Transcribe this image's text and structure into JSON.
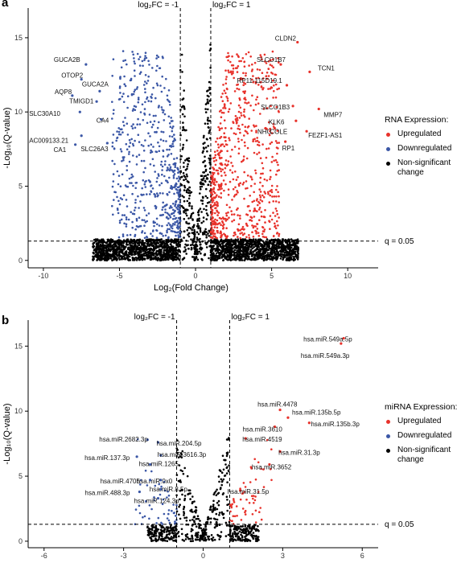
{
  "colors": {
    "up": "#e8322b",
    "down": "#3b57a6",
    "ns": "#000000"
  },
  "chart_data": [
    {
      "panel_label": "a",
      "type": "scatter",
      "xlabel": "Log₂(Fold Change)",
      "ylabel": "-Log₁₀(Q-value)",
      "xlim": [
        -11,
        12
      ],
      "ylim": [
        -0.5,
        17
      ],
      "x_ticks": [
        -10,
        -5,
        0,
        5,
        10
      ],
      "x_tick_labels": [
        "-10",
        "-5",
        "0",
        "5",
        "10"
      ],
      "y_ticks": [
        0,
        5,
        10,
        15
      ],
      "y_tick_labels": [
        "0",
        "5",
        "10",
        "15"
      ],
      "fc_lines": [
        {
          "x": -1,
          "label": "log₂FC = -1"
        },
        {
          "x": 1,
          "label": "log₂FC = 1"
        }
      ],
      "q_line": {
        "y": 1.3,
        "label": "q = 0.05"
      },
      "legend": {
        "title": "RNA Expression:",
        "items": [
          "Upregulated",
          "Downregulated",
          "Non-significant change"
        ]
      },
      "shape": {
        "xmax": 9,
        "ymax": 14,
        "ns_n": 2600,
        "sig_n": 1300,
        "x_ext": 4.5,
        "y_ext": 8,
        "y_floor": 1.5,
        "seed": 11
      },
      "labeled_points": [
        {
          "name": "GUCA2B",
          "x": -7.2,
          "y": 13.2
        },
        {
          "name": "OTOP2",
          "x": -7.5,
          "y": 12.2
        },
        {
          "name": "GUCA2A",
          "x": -6.3,
          "y": 11.4
        },
        {
          "name": "AQP8",
          "x": -8.1,
          "y": 11.1
        },
        {
          "name": "TMIGD1",
          "x": -6.5,
          "y": 10.7
        },
        {
          "name": "SLC30A10",
          "x": -7.6,
          "y": 10.0
        },
        {
          "name": "CA4",
          "x": -6.2,
          "y": 9.5
        },
        {
          "name": "AC009133.21",
          "x": -7.5,
          "y": 8.4
        },
        {
          "name": "CA1",
          "x": -7.9,
          "y": 7.8
        },
        {
          "name": "SLC26A3",
          "x": -5.8,
          "y": 7.9
        },
        {
          "name": "CLDN2",
          "x": 6.7,
          "y": 14.7
        },
        {
          "name": "SLCO1B7",
          "x": 5.6,
          "y": 13.2
        },
        {
          "name": "TCN1",
          "x": 7.5,
          "y": 12.7
        },
        {
          "name": "RP11-115D19.1",
          "x": 6.0,
          "y": 11.8
        },
        {
          "name": "SLCO1B3",
          "x": 6.4,
          "y": 10.4
        },
        {
          "name": "MMP7",
          "x": 8.1,
          "y": 10.2
        },
        {
          "name": "KLK6",
          "x": 6.6,
          "y": 9.4
        },
        {
          "name": "NHC",
          "x": 4.6,
          "y": 8.9
        },
        {
          "name": "COLE",
          "x": 5.2,
          "y": 8.9
        },
        {
          "name": "FEZF1-AS1",
          "x": 7.3,
          "y": 8.7
        },
        {
          "name": "RP1",
          "x": 5.9,
          "y": 8.0
        }
      ]
    },
    {
      "panel_label": "b",
      "type": "scatter",
      "xlabel": "Log₂(Fold Change)",
      "ylabel": "-Log₁₀(Q-value)",
      "xlim": [
        -6.6,
        6.6
      ],
      "ylim": [
        -0.5,
        17
      ],
      "x_ticks": [
        -6,
        -3,
        0,
        3,
        6
      ],
      "x_tick_labels": [
        "-6",
        "-3",
        "0",
        "3",
        "6"
      ],
      "y_ticks": [
        0,
        5,
        10,
        15
      ],
      "y_tick_labels": [
        "0",
        "5",
        "10",
        "15"
      ],
      "fc_lines": [
        {
          "x": -1,
          "label": "log₂FC = -1"
        },
        {
          "x": 1,
          "label": "log₂FC = 1"
        }
      ],
      "q_line": {
        "y": 1.3,
        "label": "q = 0.05"
      },
      "legend": {
        "title": "miRNA Expression:",
        "items": [
          "Upregulated",
          "Downregulated",
          "Non-significant change"
        ]
      },
      "shape": {
        "xmax": 2.8,
        "ymax": 8,
        "ns_n": 650,
        "sig_n": 110,
        "x_ext": 1.6,
        "y_ext": 3.5,
        "y_floor": 1.3,
        "seed": 23
      },
      "labeled_points": [
        {
          "name": "hsa.miR.549a.5p",
          "x": 5.3,
          "y": 15.6
        },
        {
          "name": "hsa.miR.549a.3p",
          "x": 5.2,
          "y": 15.2
        },
        {
          "name": "hsa.miR.4478",
          "x": 2.9,
          "y": 10.1
        },
        {
          "name": "hsa.miR.135b.5p",
          "x": 3.2,
          "y": 9.5
        },
        {
          "name": "hsa.miR.135b.3p",
          "x": 4.0,
          "y": 9.1
        },
        {
          "name": "hsa.miR.3610",
          "x": 2.7,
          "y": 8.8
        },
        {
          "name": "hsa.miR.4519",
          "x": 1.6,
          "y": 7.9
        },
        {
          "name": "hsa.miR.31.3p",
          "x": 2.9,
          "y": 6.9
        },
        {
          "name": "hsa.miR.3652",
          "x": 2.5,
          "y": 5.9
        },
        {
          "name": "hsa.miR.31.5p",
          "x": 1.4,
          "y": 3.9
        },
        {
          "name": "hsa.miR.2682.3p",
          "x": -2.1,
          "y": 7.8
        },
        {
          "name": "hsa.miR.204.5p",
          "x": -1.7,
          "y": 7.6
        },
        {
          "name": "hsa.miR.3616.3p",
          "x": -1.6,
          "y": 6.6
        },
        {
          "name": "hsa.miR.137.3p",
          "x": -2.5,
          "y": 6.5
        },
        {
          "name": "hsa.miR.1265",
          "x": -2.0,
          "y": 5.9
        },
        {
          "name": "hsa.miR.0x0",
          "x": -1.6,
          "y": 4.7
        },
        {
          "name": "hsa.miR.4705",
          "x": -2.0,
          "y": 4.7
        },
        {
          "name": "hsa.miR.8.5p",
          "x": -1.6,
          "y": 4.0
        },
        {
          "name": "hsa.miR.488.3p",
          "x": -2.4,
          "y": 3.8
        },
        {
          "name": "hsa.miR.124.3p",
          "x": -1.7,
          "y": 3.3
        }
      ]
    }
  ]
}
